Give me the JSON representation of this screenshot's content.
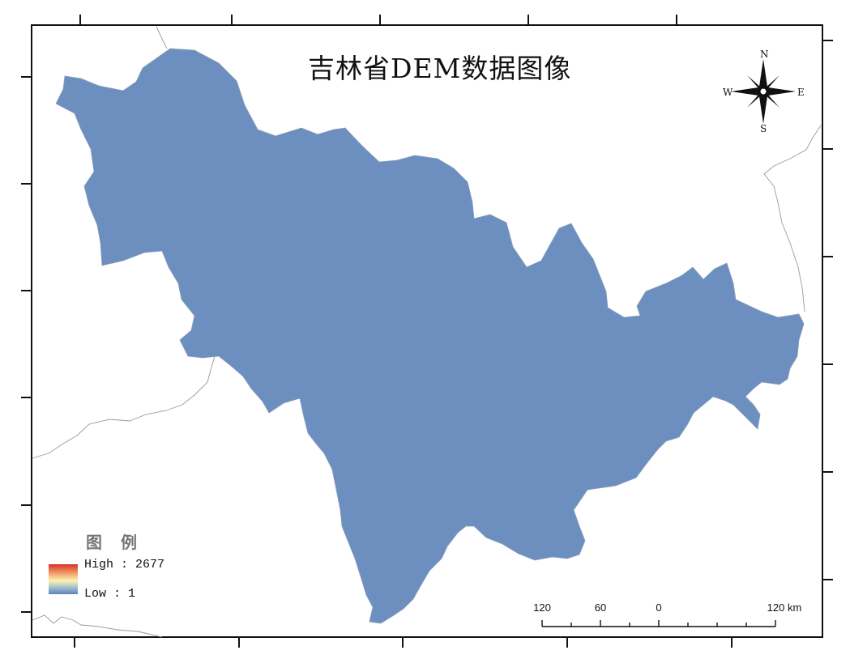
{
  "map": {
    "title": "吉林省DEM数据图像",
    "legend": {
      "title": "图 例",
      "high_label": "High : 2677",
      "low_label": "Low : 1",
      "high_value": 2677,
      "low_value": 1,
      "color_high": "#d7312a",
      "color_mid": "#fbf3b2",
      "color_low": "#5b82bd"
    },
    "north_arrow": {
      "n": "N",
      "s": "S",
      "e": "E",
      "w": "W"
    },
    "scale_bar": {
      "labels": [
        "120",
        "60",
        "0",
        "120 km"
      ]
    }
  }
}
